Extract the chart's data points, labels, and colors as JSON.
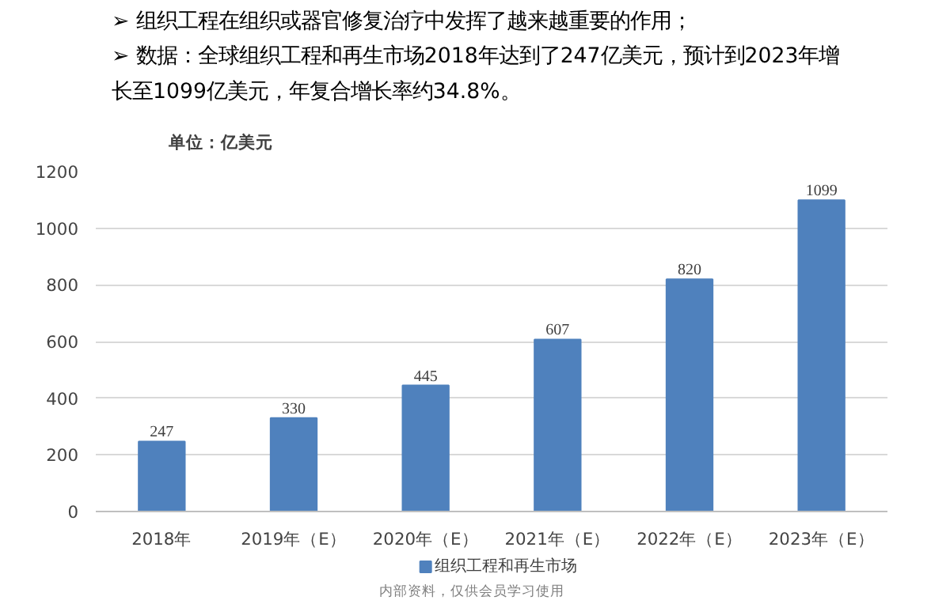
{
  "chart_data": {
    "type": "bar",
    "annotations": [
      "➢ 组织工程在组织或器官修复治疗中发挥了越来越重要的作用；",
      "➢ 数据：全球组织工程和再生市场2018年达到了247亿美元，预计到2023年增长至1099亿美元，年复合增长率约34.8%。",
      "内部资料，仅供会员学习使用"
    ],
    "ylabel": "单位：亿美元",
    "categories": [
      "2018年",
      "2019年（E）",
      "2020年（E）",
      "2021年（E）",
      "2022年（E）",
      "2023年（E）"
    ],
    "series": [
      {
        "name": "组织工程和再生市场",
        "color": "#4f81bd",
        "values": [
          247,
          330,
          445,
          607,
          820,
          1099
        ]
      }
    ],
    "ylim": [
      0,
      1200
    ],
    "yticks": [
      0,
      200,
      400,
      600,
      800,
      1000,
      1200
    ],
    "grid": "y",
    "legend": "bottom",
    "data_labels": true
  }
}
